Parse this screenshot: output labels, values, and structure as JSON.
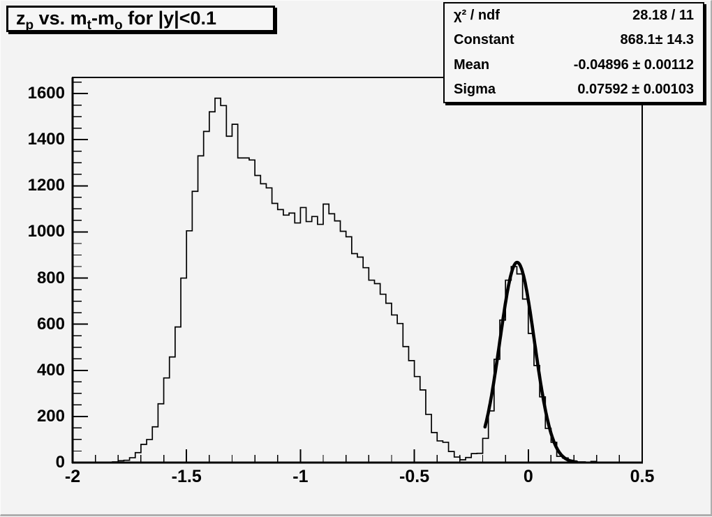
{
  "title_box": {
    "segments": [
      {
        "t": "z"
      },
      {
        "t": "p",
        "sub": true
      },
      {
        "t": " vs. m"
      },
      {
        "t": "t",
        "sub": true
      },
      {
        "t": "-m"
      },
      {
        "t": "o",
        "sub": true
      },
      {
        "t": " for |y|<0.1"
      }
    ],
    "plain": "z_p vs. m_t-m_o for |y|<0.1"
  },
  "stats_box": {
    "rows": [
      {
        "label": "χ² / ndf",
        "value": "28.18 / 11"
      },
      {
        "label": "Constant",
        "value": "868.1± 14.3"
      },
      {
        "label": "Mean",
        "value": "-0.04896 ± 0.00112"
      },
      {
        "label": "Sigma",
        "value": "0.07592 ± 0.00103"
      }
    ]
  },
  "colors": {
    "canvas_bg": "#f3f3f3",
    "box_bg": "#f6f6f6",
    "line": "#000000"
  },
  "chart_data": {
    "type": "histogram-step",
    "title": "z_p vs. m_t-m_o for |y|<0.1",
    "xlabel": "",
    "ylabel": "",
    "xlim": [
      -2.0,
      0.5
    ],
    "ylim": [
      0,
      1670
    ],
    "grid": false,
    "bin_start": -2.0,
    "bin_width": 0.025,
    "counts": [
      0,
      0,
      0,
      0,
      0,
      0,
      0,
      3,
      8,
      10,
      21,
      43,
      79,
      100,
      155,
      255,
      367,
      458,
      588,
      800,
      1005,
      1176,
      1330,
      1436,
      1521,
      1580,
      1548,
      1415,
      1467,
      1321,
      1321,
      1312,
      1245,
      1209,
      1191,
      1124,
      1097,
      1073,
      1082,
      1039,
      1106,
      1045,
      1067,
      1033,
      1121,
      1079,
      1048,
      1003,
      979,
      906,
      891,
      845,
      791,
      776,
      730,
      691,
      640,
      603,
      503,
      442,
      373,
      315,
      209,
      130,
      94,
      88,
      48,
      24,
      12,
      22,
      39,
      40,
      105,
      224,
      448,
      618,
      791,
      850,
      818,
      709,
      560,
      421,
      285,
      148,
      88,
      27,
      20,
      10,
      3,
      3,
      2,
      5,
      0,
      0,
      0,
      0,
      0,
      0,
      0,
      0
    ],
    "x_ticks": {
      "values": [
        -2,
        -1.5,
        -1,
        -0.5,
        0,
        0.5
      ],
      "labels": [
        "-2",
        "-1.5",
        "-1",
        "-0.5",
        "0",
        "0.5"
      ],
      "minor_step": 0.1
    },
    "y_ticks": {
      "values": [
        0,
        200,
        400,
        600,
        800,
        1000,
        1200,
        1400,
        1600
      ],
      "labels": [
        "0",
        "200",
        "400",
        "600",
        "800",
        "1000",
        "1200",
        "1400",
        "1600"
      ],
      "minor_step": 50
    },
    "fit": {
      "type": "gaussian",
      "constant": 868.1,
      "mean": -0.04896,
      "sigma": 0.07592,
      "chi2_ndf": "28.18 / 11",
      "draw_range": [
        -0.19,
        0.212
      ]
    }
  }
}
